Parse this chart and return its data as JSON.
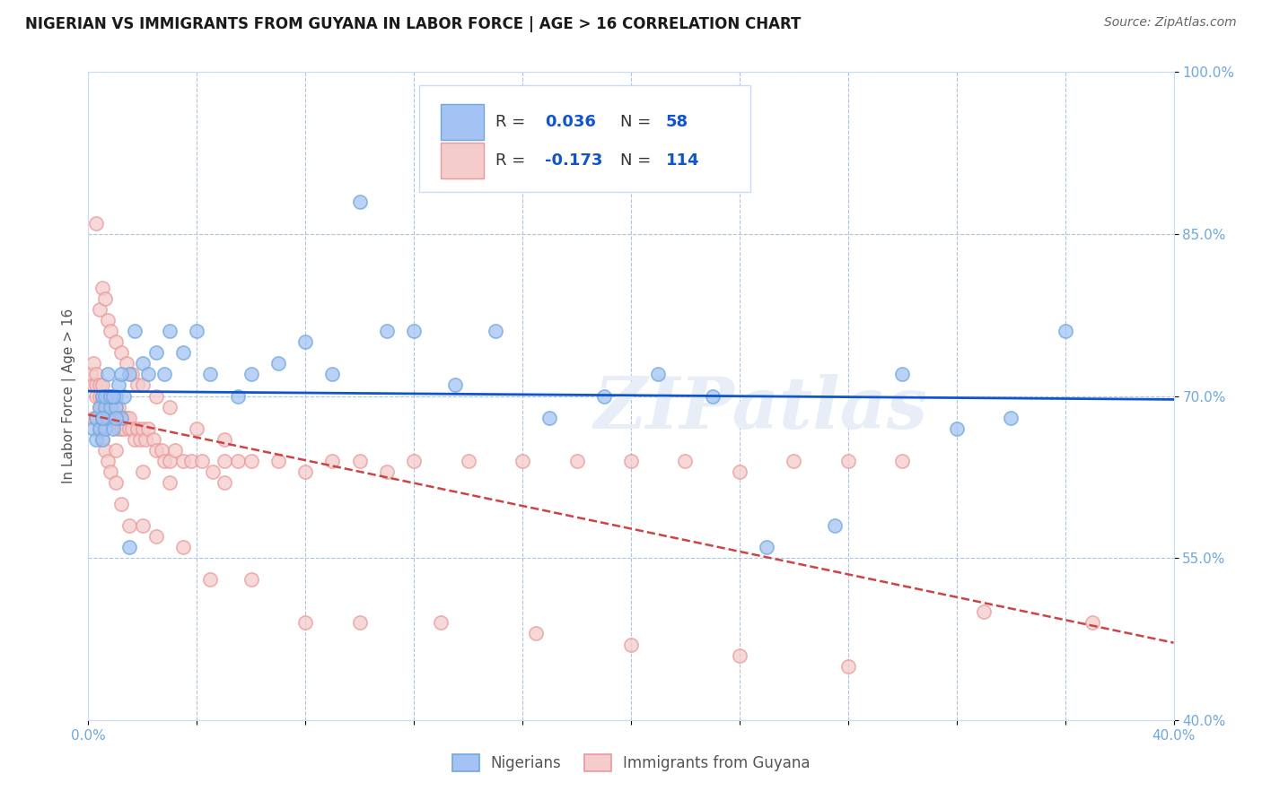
{
  "title": "NIGERIAN VS IMMIGRANTS FROM GUYANA IN LABOR FORCE | AGE > 16 CORRELATION CHART",
  "source": "Source: ZipAtlas.com",
  "ylabel": "In Labor Force | Age > 16",
  "xlim": [
    0.0,
    0.4
  ],
  "ylim": [
    0.4,
    1.0
  ],
  "xticks": [
    0.0,
    0.04,
    0.08,
    0.12,
    0.16,
    0.2,
    0.24,
    0.28,
    0.32,
    0.36,
    0.4
  ],
  "yticks": [
    0.4,
    0.55,
    0.7,
    0.85,
    1.0
  ],
  "ytick_labels": [
    "40.0%",
    "55.0%",
    "70.0%",
    "85.0%",
    "100.0%"
  ],
  "nigerian_R": 0.036,
  "nigerian_N": 58,
  "guyana_R": -0.173,
  "guyana_N": 114,
  "blue_fill": "#a4c2f4",
  "blue_edge": "#6fa8dc",
  "pink_fill": "#f4cccc",
  "pink_edge": "#ea9999",
  "blue_line_color": "#1155cc",
  "pink_line_color": "#cc4444",
  "watermark": "ZIPatlas",
  "tick_color": "#6fa8dc",
  "grid_color": "#b0c4de",
  "nig_x": [
    0.002,
    0.003,
    0.003,
    0.004,
    0.004,
    0.005,
    0.005,
    0.005,
    0.006,
    0.006,
    0.007,
    0.007,
    0.008,
    0.008,
    0.009,
    0.01,
    0.01,
    0.011,
    0.012,
    0.013,
    0.015,
    0.017,
    0.02,
    0.022,
    0.025,
    0.028,
    0.03,
    0.035,
    0.04,
    0.045,
    0.055,
    0.06,
    0.07,
    0.08,
    0.09,
    0.1,
    0.11,
    0.12,
    0.135,
    0.15,
    0.17,
    0.19,
    0.21,
    0.23,
    0.25,
    0.275,
    0.3,
    0.32,
    0.34,
    0.36,
    0.005,
    0.006,
    0.007,
    0.008,
    0.009,
    0.01,
    0.012,
    0.015
  ],
  "nig_y": [
    0.67,
    0.68,
    0.66,
    0.69,
    0.67,
    0.68,
    0.7,
    0.66,
    0.69,
    0.67,
    0.7,
    0.68,
    0.69,
    0.7,
    0.67,
    0.69,
    0.7,
    0.71,
    0.68,
    0.7,
    0.72,
    0.76,
    0.73,
    0.72,
    0.74,
    0.72,
    0.76,
    0.74,
    0.76,
    0.72,
    0.7,
    0.72,
    0.73,
    0.75,
    0.72,
    0.88,
    0.76,
    0.76,
    0.71,
    0.76,
    0.68,
    0.7,
    0.72,
    0.7,
    0.56,
    0.58,
    0.72,
    0.67,
    0.68,
    0.76,
    0.68,
    0.7,
    0.72,
    0.7,
    0.7,
    0.68,
    0.72,
    0.56
  ],
  "guy_x": [
    0.001,
    0.002,
    0.002,
    0.003,
    0.003,
    0.003,
    0.004,
    0.004,
    0.004,
    0.005,
    0.005,
    0.005,
    0.006,
    0.006,
    0.006,
    0.007,
    0.007,
    0.007,
    0.008,
    0.008,
    0.008,
    0.009,
    0.009,
    0.01,
    0.01,
    0.01,
    0.011,
    0.011,
    0.012,
    0.012,
    0.013,
    0.013,
    0.014,
    0.015,
    0.015,
    0.016,
    0.017,
    0.018,
    0.019,
    0.02,
    0.021,
    0.022,
    0.024,
    0.025,
    0.027,
    0.028,
    0.03,
    0.032,
    0.035,
    0.038,
    0.042,
    0.046,
    0.05,
    0.055,
    0.06,
    0.07,
    0.08,
    0.09,
    0.1,
    0.11,
    0.12,
    0.14,
    0.16,
    0.18,
    0.2,
    0.22,
    0.24,
    0.26,
    0.28,
    0.3,
    0.003,
    0.004,
    0.005,
    0.006,
    0.007,
    0.008,
    0.01,
    0.012,
    0.014,
    0.016,
    0.018,
    0.02,
    0.025,
    0.03,
    0.04,
    0.05,
    0.002,
    0.003,
    0.004,
    0.005,
    0.006,
    0.007,
    0.008,
    0.01,
    0.012,
    0.015,
    0.02,
    0.025,
    0.035,
    0.045,
    0.06,
    0.08,
    0.1,
    0.13,
    0.165,
    0.2,
    0.24,
    0.28,
    0.33,
    0.37,
    0.01,
    0.02,
    0.03,
    0.05
  ],
  "guy_y": [
    0.72,
    0.73,
    0.71,
    0.7,
    0.71,
    0.72,
    0.69,
    0.7,
    0.71,
    0.69,
    0.7,
    0.71,
    0.68,
    0.69,
    0.7,
    0.68,
    0.69,
    0.7,
    0.69,
    0.7,
    0.68,
    0.69,
    0.68,
    0.68,
    0.69,
    0.7,
    0.67,
    0.69,
    0.68,
    0.67,
    0.67,
    0.68,
    0.68,
    0.67,
    0.68,
    0.67,
    0.66,
    0.67,
    0.66,
    0.67,
    0.66,
    0.67,
    0.66,
    0.65,
    0.65,
    0.64,
    0.64,
    0.65,
    0.64,
    0.64,
    0.64,
    0.63,
    0.64,
    0.64,
    0.64,
    0.64,
    0.63,
    0.64,
    0.64,
    0.63,
    0.64,
    0.64,
    0.64,
    0.64,
    0.64,
    0.64,
    0.63,
    0.64,
    0.64,
    0.64,
    0.86,
    0.78,
    0.8,
    0.79,
    0.77,
    0.76,
    0.75,
    0.74,
    0.73,
    0.72,
    0.71,
    0.71,
    0.7,
    0.69,
    0.67,
    0.66,
    0.68,
    0.68,
    0.67,
    0.66,
    0.65,
    0.64,
    0.63,
    0.62,
    0.6,
    0.58,
    0.58,
    0.57,
    0.56,
    0.53,
    0.53,
    0.49,
    0.49,
    0.49,
    0.48,
    0.47,
    0.46,
    0.45,
    0.5,
    0.49,
    0.65,
    0.63,
    0.62,
    0.62
  ]
}
